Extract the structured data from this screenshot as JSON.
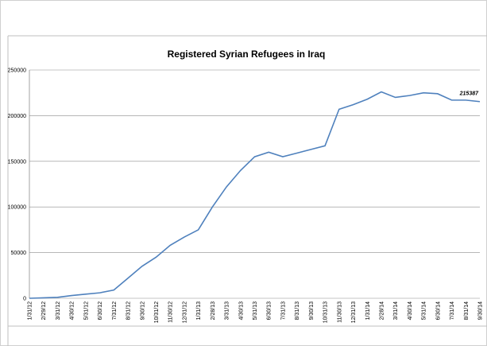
{
  "chart_data": {
    "type": "line",
    "title": "Registered Syrian Refugees in Iraq",
    "categories": [
      "1/31/12",
      "2/29/12",
      "3/31/12",
      "4/30/12",
      "5/31/12",
      "6/30/12",
      "7/31/12",
      "8/31/12",
      "9/30/12",
      "10/31/12",
      "11/30/12",
      "12/31/12",
      "1/31/13",
      "2/28/13",
      "3/31/13",
      "4/30/13",
      "5/31/13",
      "6/30/13",
      "7/31/13",
      "8/31/13",
      "9/30/13",
      "10/31/13",
      "11/30/13",
      "12/31/13",
      "1/31/14",
      "2/28/14",
      "3/31/14",
      "4/30/14",
      "5/31/14",
      "6/30/14",
      "7/31/14",
      "8/31/14",
      "9/30/14"
    ],
    "values": [
      0,
      500,
      1000,
      3000,
      4500,
      6000,
      9000,
      22000,
      35000,
      45000,
      58000,
      67000,
      75000,
      100000,
      122000,
      140000,
      155000,
      160000,
      155000,
      159000,
      163000,
      167000,
      207000,
      212000,
      218000,
      226000,
      220000,
      222000,
      225000,
      224000,
      217000,
      217000,
      215387
    ],
    "color": "#4f81bd",
    "ylim": [
      0,
      250000
    ],
    "yticks": [
      0,
      50000,
      100000,
      150000,
      200000,
      250000
    ],
    "grid": true
  }
}
